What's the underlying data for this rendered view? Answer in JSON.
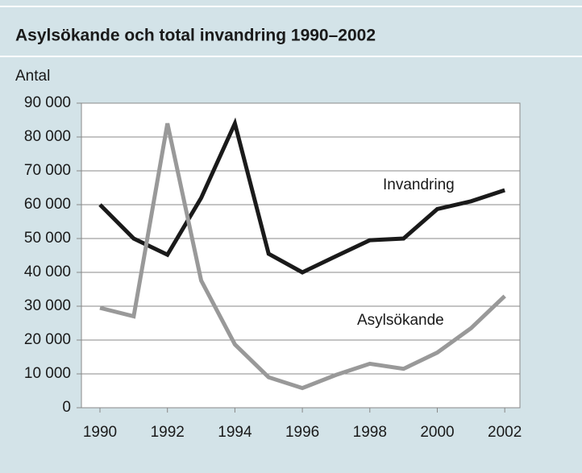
{
  "chart_data": {
    "type": "line",
    "title": "Asylsökande och total invandring 1990–2002",
    "ylabel": "Antal",
    "x": [
      1990,
      1991,
      1992,
      1993,
      1994,
      1995,
      1996,
      1997,
      1998,
      1999,
      2000,
      2001,
      2002
    ],
    "series": [
      {
        "name": "Invandring",
        "color": "#1a1a1a",
        "values": [
          60000,
          50000,
          45200,
          62000,
          84000,
          45500,
          40000,
          44800,
          49500,
          50000,
          58700,
          61000,
          64300
        ]
      },
      {
        "name": "Asylsökande",
        "color": "#999999",
        "values": [
          29500,
          27000,
          84000,
          37600,
          18700,
          9000,
          5800,
          9700,
          13000,
          11500,
          16300,
          23500,
          33000
        ]
      }
    ],
    "xlim": [
      1989.45,
      2002.45
    ],
    "xticks": [
      1990,
      1992,
      1994,
      1996,
      1998,
      2000,
      2002
    ],
    "ylim": [
      0,
      90000
    ],
    "yticks": [
      0,
      {
        "value": 10000,
        "label": "10 000"
      },
      {
        "value": 20000,
        "label": "20 000"
      },
      {
        "value": 30000,
        "label": "30 000"
      },
      {
        "value": 40000,
        "label": "40 000"
      },
      {
        "value": 50000,
        "label": "50 000"
      },
      {
        "value": 60000,
        "label": "60 000"
      },
      {
        "value": 70000,
        "label": "70 000"
      },
      {
        "value": 80000,
        "label": "80 000"
      },
      {
        "value": 90000,
        "label": "90 000"
      }
    ],
    "grid": true
  }
}
